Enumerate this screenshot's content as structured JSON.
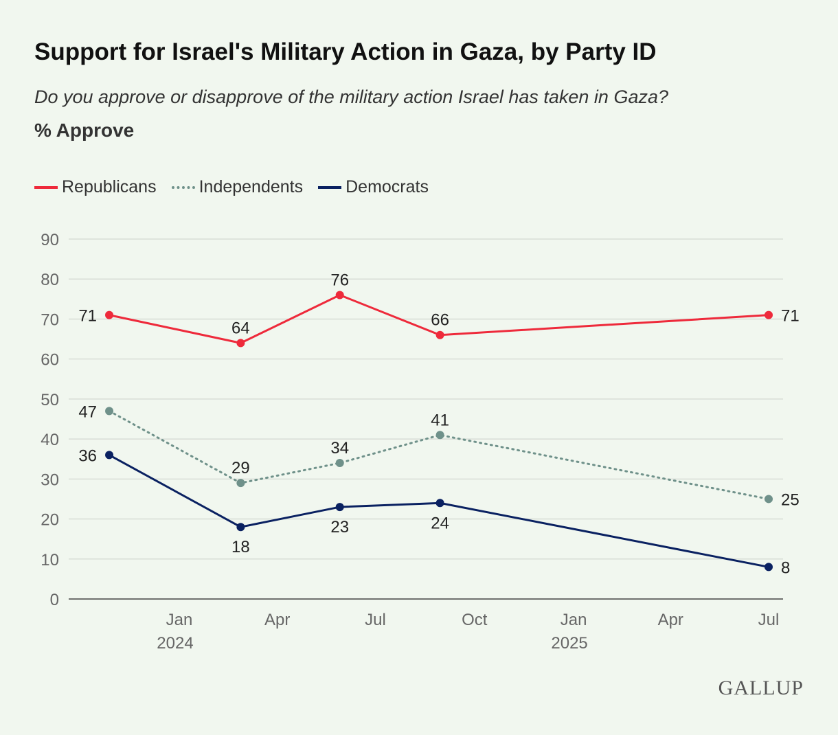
{
  "title": "Support for Israel's Military Action in Gaza, by Party ID",
  "subtitle": "Do you approve or disapprove of the military action Israel has taken in Gaza?",
  "measure": "% Approve",
  "logo": "GALLUP",
  "chart_data": {
    "type": "line",
    "title": "Support for Israel's Military Action in Gaza, by Party ID",
    "ylabel": "% Approve",
    "ylim": [
      0,
      90
    ],
    "yticks": [
      0,
      10,
      20,
      30,
      40,
      50,
      60,
      70,
      80,
      90
    ],
    "xticks": [
      {
        "date": "2024-01-01",
        "label": "Jan",
        "year": "2024"
      },
      {
        "date": "2024-04-01",
        "label": "Apr",
        "year": ""
      },
      {
        "date": "2024-07-01",
        "label": "Jul",
        "year": ""
      },
      {
        "date": "2024-10-01",
        "label": "Oct",
        "year": ""
      },
      {
        "date": "2025-01-01",
        "label": "Jan",
        "year": "2025"
      },
      {
        "date": "2025-04-01",
        "label": "Apr",
        "year": ""
      },
      {
        "date": "2025-07-01",
        "label": "Jul",
        "year": ""
      }
    ],
    "x": [
      "2023-10-28",
      "2024-02-27",
      "2024-05-29",
      "2024-08-30",
      "2025-07-01"
    ],
    "grid": true,
    "legend": "top-left",
    "series": [
      {
        "name": "Republicans",
        "color": "#ee2a3b",
        "style": "solid",
        "values": [
          71,
          64,
          76,
          66,
          71
        ]
      },
      {
        "name": "Independents",
        "color": "#6f918a",
        "style": "dotted",
        "values": [
          47,
          29,
          34,
          41,
          25
        ]
      },
      {
        "name": "Democrats",
        "color": "#0a2161",
        "style": "solid",
        "values": [
          36,
          18,
          23,
          24,
          8
        ]
      }
    ]
  }
}
